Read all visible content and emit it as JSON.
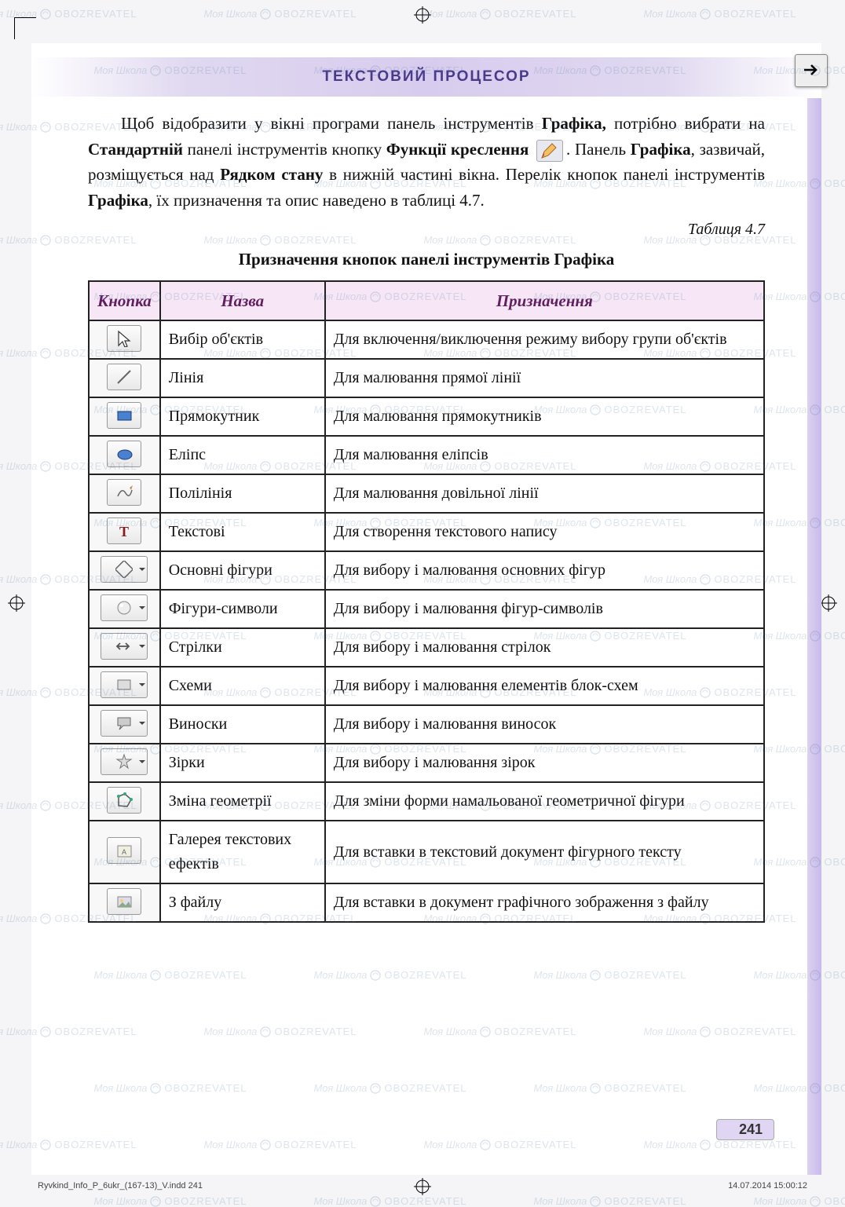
{
  "watermark": {
    "brand": "Моя Школа",
    "sub": "OBOZREVATEL"
  },
  "header": {
    "title": "ТЕКСТОВИЙ ПРОЦЕСОР"
  },
  "paragraph": {
    "p1a": "Щоб відобразити у вікні програми панель інструментів ",
    "p1b": "Графіка,",
    "p1c": " потрібно вибрати на ",
    "p1d": "Стандартній",
    "p1e": " панелі інструментів кнопку ",
    "p1f": "Функції креслення",
    "p1g": ". Панель ",
    "p1h": "Графіка",
    "p1i": ", зазвичай, розміщується над ",
    "p1j": "Рядком стану",
    "p1k": " в нижній частині вікна. Перелік кнопок панелі інструментів ",
    "p1l": "Графіка",
    "p1m": ", їх призначення та опис наведено в таблиці 4.7."
  },
  "table": {
    "label": "Таблиця 4.7",
    "caption": "Призначення кнопок панелі інструментів Графіка",
    "columns": [
      "Кнопка",
      "Назва",
      "Призначення"
    ],
    "rows": [
      {
        "icon": "cursor",
        "dd": false,
        "name": "Вибір об'єктів",
        "desc": "Для включення/виключення режиму вибору групи об'єктів"
      },
      {
        "icon": "line",
        "dd": false,
        "name": "Лінія",
        "desc": "Для малювання прямої лінії"
      },
      {
        "icon": "rect",
        "dd": false,
        "name": "Прямокутник",
        "desc": "Для малювання прямокутників"
      },
      {
        "icon": "ellipse",
        "dd": false,
        "name": "Еліпс",
        "desc": "Для малювання еліпсів"
      },
      {
        "icon": "freeline",
        "dd": false,
        "name": "Полілінія",
        "desc": "Для малювання довільної лінії"
      },
      {
        "icon": "text",
        "dd": false,
        "name": "Текстові",
        "desc": "Для створення текстового напису"
      },
      {
        "icon": "shapes",
        "dd": true,
        "name": "Основні фігури",
        "desc": "Для вибору і малювання основних фігур"
      },
      {
        "icon": "symbols",
        "dd": true,
        "name": "Фігури-символи",
        "desc": "Для вибору і малювання фігур-символів"
      },
      {
        "icon": "arrows",
        "dd": true,
        "name": "Стрілки",
        "desc": "Для вибору і малювання стрілок"
      },
      {
        "icon": "flow",
        "dd": true,
        "name": "Схеми",
        "desc": "Для вибору і малювання елементів блок-схем"
      },
      {
        "icon": "callouts",
        "dd": true,
        "name": "Виноски",
        "desc": "Для вибору і малювання виносок"
      },
      {
        "icon": "stars",
        "dd": true,
        "name": "Зірки",
        "desc": "Для вибору і малювання зірок"
      },
      {
        "icon": "polygon",
        "dd": false,
        "name": "Зміна геометрії",
        "desc": "Для зміни форми намальованої геометричної фігури"
      },
      {
        "icon": "fontwork",
        "dd": false,
        "name": "Галерея текстових ефектів",
        "desc": "Для вставки в текстовий документ фігурного тексту"
      },
      {
        "icon": "fromfile",
        "dd": false,
        "name": "З файлу",
        "desc": "Для вставки в документ графічного зображення з файлу"
      }
    ]
  },
  "page_num": "241",
  "footer": {
    "left": "Ryvkind_Info_P_6ukr_(167-13)_V.indd   241",
    "right": "14.07.2014   15:00:12"
  },
  "colors": {
    "header_text": "#4a3a8a",
    "th_bg": "#f6e6f6",
    "th_text": "#602060",
    "stripe": "#c8baec",
    "page_badge": "#e0d6f4"
  }
}
